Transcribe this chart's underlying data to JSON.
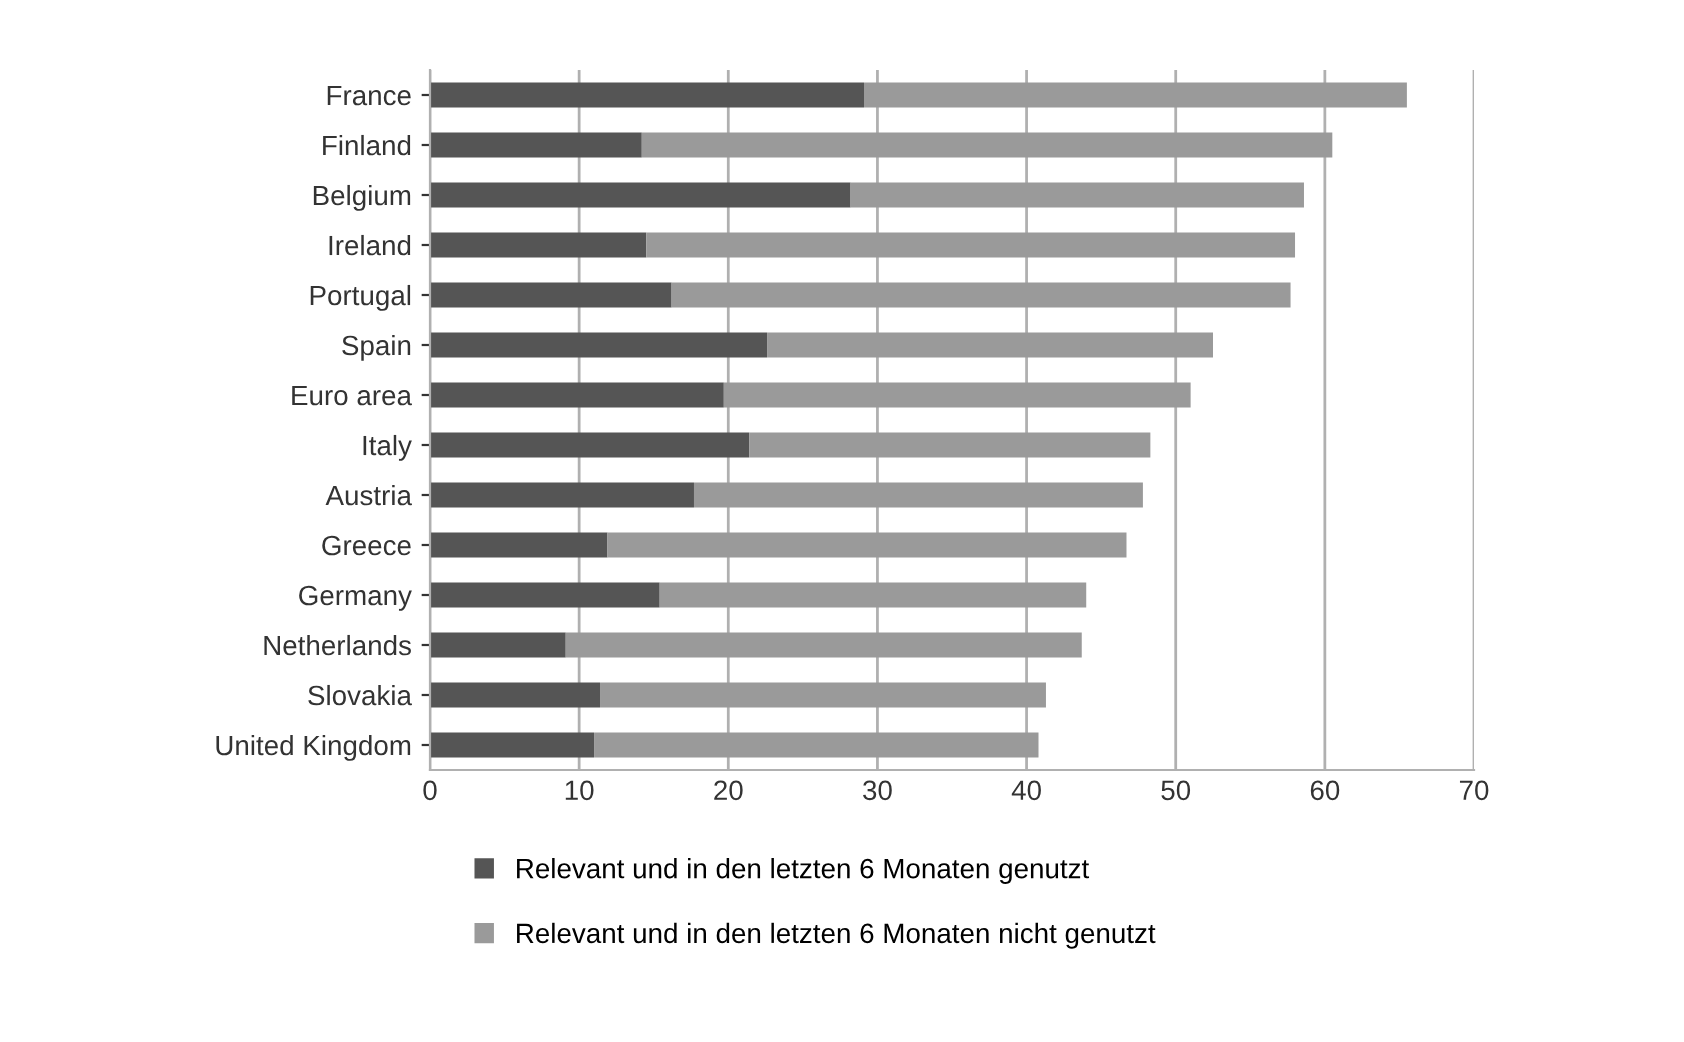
{
  "chart_data": {
    "type": "bar",
    "orientation": "horizontal",
    "stacked": true,
    "categories": [
      "France",
      "Finland",
      "Belgium",
      "Ireland",
      "Portugal",
      "Spain",
      "Euro area",
      "Italy",
      "Austria",
      "Greece",
      "Germany",
      "Netherlands",
      "Slovakia",
      "United Kingdom"
    ],
    "series": [
      {
        "name": "Relevant und in den letzten 6 Monaten genutzt",
        "color": "#555555",
        "values": [
          29.1,
          14.2,
          28.2,
          14.5,
          16.2,
          22.6,
          19.7,
          21.4,
          17.7,
          11.9,
          15.4,
          9.1,
          11.4,
          11.0
        ]
      },
      {
        "name": "Relevant und in den letzten 6 Monaten nicht genutzt",
        "color": "#9a9a9a",
        "values": [
          36.4,
          46.3,
          30.4,
          43.5,
          41.5,
          29.9,
          31.3,
          26.9,
          30.1,
          34.8,
          28.6,
          34.6,
          29.9,
          29.8
        ]
      }
    ],
    "xlim": [
      0,
      70
    ],
    "xticks": [
      0,
      10,
      20,
      30,
      40,
      50,
      60,
      70
    ],
    "grid": "x",
    "legend": "bottom"
  }
}
